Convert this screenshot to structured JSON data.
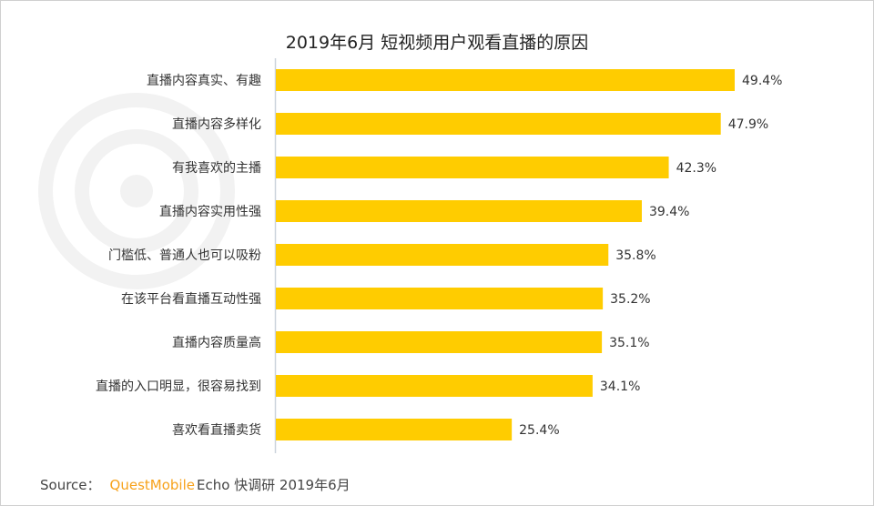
{
  "chart_data": {
    "type": "bar",
    "orientation": "horizontal",
    "title": "2019年6月 短视频用户观看直播的原因",
    "categories": [
      "直播内容真实、有趣",
      "直播内容多样化",
      "有我喜欢的主播",
      "直播内容实用性强",
      "门槛低、普通人也可以吸粉",
      "在该平台看直播互动性强",
      "直播内容质量高",
      "直播的入口明显，很容易找到",
      "喜欢看直播卖货"
    ],
    "values": [
      49.4,
      47.9,
      42.3,
      39.4,
      35.8,
      35.2,
      35.1,
      34.1,
      25.4
    ],
    "value_labels": [
      "49.4%",
      "47.9%",
      "42.3%",
      "39.4%",
      "35.8%",
      "35.2%",
      "35.1%",
      "34.1%",
      "25.4%"
    ],
    "unit": "%",
    "bar_color": "#FFCC00",
    "grid": false
  },
  "watermark": "QUESTMOBILE",
  "source": {
    "label": "Source：",
    "brand": "QuestMobile",
    "text": "Echo 快调研 2019年6月"
  }
}
